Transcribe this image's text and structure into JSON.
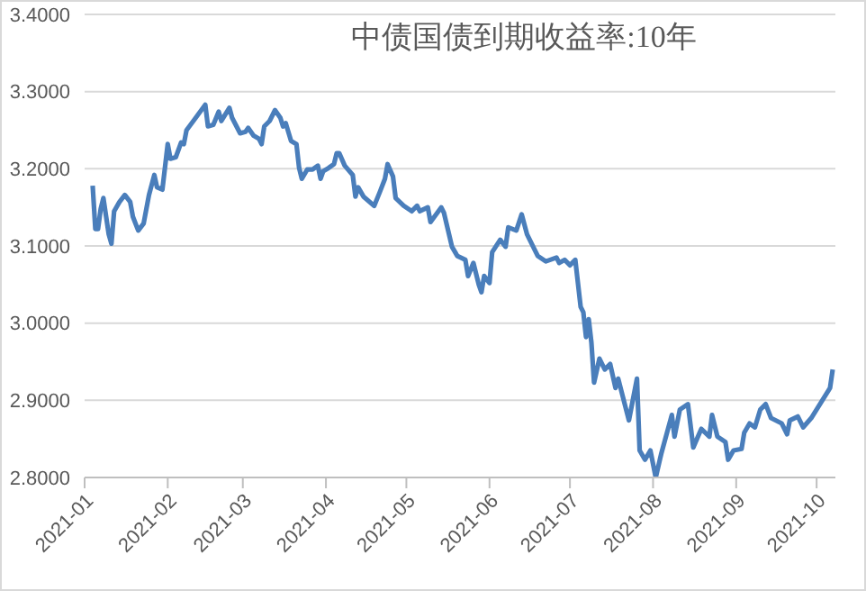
{
  "chart_data": {
    "type": "line",
    "title": "中债国债到期收益率:10年",
    "color": "#4a7ebb",
    "grid": "y",
    "xlim": [
      "2021-01-01",
      "2021-10-08"
    ],
    "xticks": [
      {
        "value": "2021-01-01",
        "label": "2021-01"
      },
      {
        "value": "2021-02-01",
        "label": "2021-02"
      },
      {
        "value": "2021-03-01",
        "label": "2021-03"
      },
      {
        "value": "2021-04-01",
        "label": "2021-04"
      },
      {
        "value": "2021-05-01",
        "label": "2021-05"
      },
      {
        "value": "2021-06-01",
        "label": "2021-06"
      },
      {
        "value": "2021-07-01",
        "label": "2021-07"
      },
      {
        "value": "2021-08-01",
        "label": "2021-08"
      },
      {
        "value": "2021-09-01",
        "label": "2021-09"
      },
      {
        "value": "2021-10-01",
        "label": "2021-10"
      }
    ],
    "ylim": [
      2.8,
      3.4
    ],
    "yticks": [
      {
        "value": 2.8,
        "label": "2.8000"
      },
      {
        "value": 2.9,
        "label": "2.9000"
      },
      {
        "value": 3.0,
        "label": "3.0000"
      },
      {
        "value": 3.1,
        "label": "3.1000"
      },
      {
        "value": 3.2,
        "label": "3.2000"
      },
      {
        "value": 3.3,
        "label": "3.3000"
      },
      {
        "value": 3.4,
        "label": "3.4000"
      }
    ],
    "x": [
      "2021-01-04",
      "2021-01-05",
      "2021-01-06",
      "2021-01-07",
      "2021-01-08",
      "2021-01-10",
      "2021-01-11",
      "2021-01-12",
      "2021-01-14",
      "2021-01-16",
      "2021-01-18",
      "2021-01-19",
      "2021-01-21",
      "2021-01-23",
      "2021-01-25",
      "2021-01-27",
      "2021-01-28",
      "2021-01-30",
      "2021-02-01",
      "2021-02-02",
      "2021-02-04",
      "2021-02-06",
      "2021-02-07",
      "2021-02-08",
      "2021-02-11",
      "2021-02-15",
      "2021-02-16",
      "2021-02-18",
      "2021-02-20",
      "2021-02-21",
      "2021-02-24",
      "2021-02-25",
      "2021-02-28",
      "2021-03-02",
      "2021-03-03",
      "2021-03-05",
      "2021-03-07",
      "2021-03-08",
      "2021-03-09",
      "2021-03-11",
      "2021-03-13",
      "2021-03-15",
      "2021-03-16",
      "2021-03-17",
      "2021-03-19",
      "2021-03-21",
      "2021-03-22",
      "2021-03-23",
      "2021-03-25",
      "2021-03-27",
      "2021-03-29",
      "2021-03-30",
      "2021-03-31",
      "2021-04-02",
      "2021-04-04",
      "2021-04-05",
      "2021-04-06",
      "2021-04-08",
      "2021-04-11",
      "2021-04-12",
      "2021-04-13",
      "2021-04-15",
      "2021-04-19",
      "2021-04-21",
      "2021-04-23",
      "2021-04-24",
      "2021-04-26",
      "2021-04-27",
      "2021-04-30",
      "2021-05-03",
      "2021-05-05",
      "2021-05-06",
      "2021-05-09",
      "2021-05-10",
      "2021-05-14",
      "2021-05-15",
      "2021-05-18",
      "2021-05-20",
      "2021-05-23",
      "2021-05-24",
      "2021-05-26",
      "2021-05-28",
      "2021-05-29",
      "2021-05-30",
      "2021-06-01",
      "2021-06-02",
      "2021-06-05",
      "2021-06-07",
      "2021-06-08",
      "2021-06-11",
      "2021-06-13",
      "2021-06-15",
      "2021-06-19",
      "2021-06-22",
      "2021-06-26",
      "2021-06-27",
      "2021-06-29",
      "2021-07-01",
      "2021-07-03",
      "2021-07-05",
      "2021-07-06",
      "2021-07-07",
      "2021-07-08",
      "2021-07-09",
      "2021-07-10",
      "2021-07-12",
      "2021-07-14",
      "2021-07-16",
      "2021-07-18",
      "2021-07-19",
      "2021-07-23",
      "2021-07-26",
      "2021-07-27",
      "2021-07-29",
      "2021-07-31",
      "2021-08-02",
      "2021-08-04",
      "2021-08-08",
      "2021-08-09",
      "2021-08-11",
      "2021-08-14",
      "2021-08-16",
      "2021-08-19",
      "2021-08-22",
      "2021-08-23",
      "2021-08-25",
      "2021-08-28",
      "2021-08-29",
      "2021-08-31",
      "2021-09-03",
      "2021-09-04",
      "2021-09-06",
      "2021-09-08",
      "2021-09-10",
      "2021-09-12",
      "2021-09-14",
      "2021-09-18",
      "2021-09-20",
      "2021-09-21",
      "2021-09-24",
      "2021-09-26",
      "2021-09-29",
      "2021-10-06",
      "2021-10-07"
    ],
    "values": [
      3.178,
      3.122,
      3.122,
      3.148,
      3.162,
      3.115,
      3.103,
      3.145,
      3.157,
      3.166,
      3.157,
      3.138,
      3.12,
      3.129,
      3.166,
      3.192,
      3.176,
      3.173,
      3.232,
      3.213,
      3.215,
      3.234,
      3.232,
      3.25,
      3.264,
      3.283,
      3.255,
      3.257,
      3.274,
      3.262,
      3.279,
      3.266,
      3.246,
      3.248,
      3.253,
      3.243,
      3.239,
      3.232,
      3.255,
      3.262,
      3.276,
      3.266,
      3.255,
      3.259,
      3.236,
      3.232,
      3.201,
      3.187,
      3.199,
      3.199,
      3.204,
      3.187,
      3.197,
      3.201,
      3.206,
      3.22,
      3.22,
      3.204,
      3.192,
      3.164,
      3.176,
      3.164,
      3.152,
      3.169,
      3.187,
      3.206,
      3.19,
      3.162,
      3.152,
      3.145,
      3.152,
      3.145,
      3.15,
      3.131,
      3.15,
      3.143,
      3.099,
      3.087,
      3.082,
      3.061,
      3.078,
      3.05,
      3.04,
      3.061,
      3.052,
      3.092,
      3.108,
      3.099,
      3.124,
      3.12,
      3.141,
      3.115,
      3.087,
      3.08,
      3.085,
      3.078,
      3.082,
      3.075,
      3.082,
      3.021,
      3.014,
      2.982,
      3.005,
      2.975,
      2.923,
      2.954,
      2.94,
      2.947,
      2.916,
      2.928,
      2.874,
      2.928,
      2.835,
      2.823,
      2.835,
      2.8,
      2.83,
      2.881,
      2.853,
      2.888,
      2.895,
      2.839,
      2.863,
      2.853,
      2.881,
      2.853,
      2.846,
      2.823,
      2.835,
      2.837,
      2.858,
      2.87,
      2.865,
      2.888,
      2.895,
      2.877,
      2.87,
      2.856,
      2.874,
      2.879,
      2.865,
      2.877,
      2.916,
      2.94
    ]
  }
}
